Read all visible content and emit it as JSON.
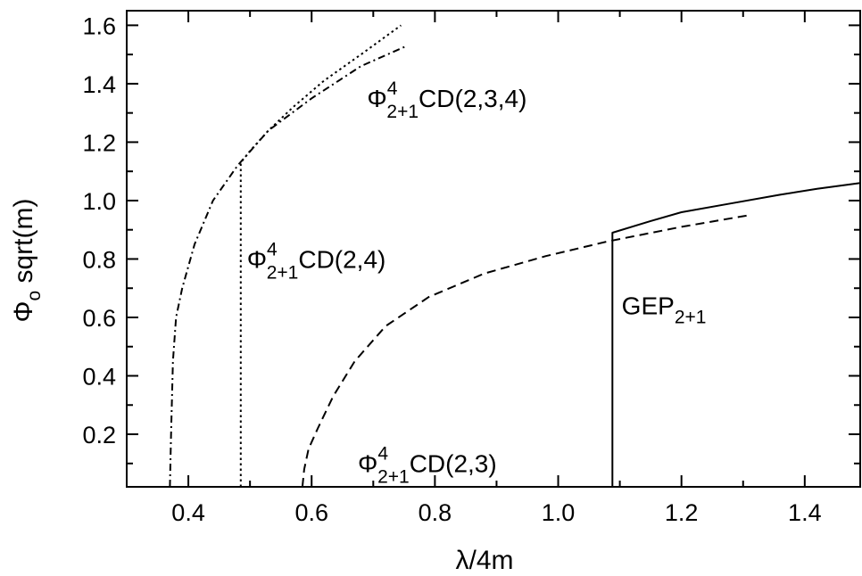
{
  "chart_data": {
    "type": "line",
    "xlabel": "λ/4m",
    "ylabel_main": "Φ",
    "ylabel_sub": "o",
    "ylabel_rest": " sqrt(m)",
    "xlim": [
      0.3,
      1.49
    ],
    "ylim": [
      0.02,
      1.65
    ],
    "xticks": [
      0.4,
      0.6,
      0.8,
      1.0,
      1.2,
      1.4
    ],
    "xtick_labels": [
      "0.4",
      "0.6",
      "0.8",
      "1.0",
      "1.2",
      "1.4"
    ],
    "xticks_minor": [
      0.3,
      0.5,
      0.7,
      0.9,
      1.1,
      1.3
    ],
    "yticks": [
      0.2,
      0.4,
      0.6,
      0.8,
      1.0,
      1.2,
      1.4,
      1.6
    ],
    "ytick_labels": [
      "0.2",
      "0.4",
      "0.6",
      "0.8",
      "1.0",
      "1.2",
      "1.4",
      "1.6"
    ],
    "yticks_minor": [
      0.1,
      0.3,
      0.5,
      0.7,
      0.9,
      1.1,
      1.3,
      1.5
    ],
    "grid": false,
    "series": [
      {
        "id": "cd234",
        "style": "dashdot",
        "x": [
          0.37,
          0.372,
          0.375,
          0.38,
          0.39,
          0.41,
          0.44,
          0.48,
          0.53,
          0.6,
          0.68,
          0.755
        ],
        "y": [
          0.02,
          0.2,
          0.45,
          0.6,
          0.7,
          0.85,
          1.0,
          1.12,
          1.24,
          1.35,
          1.46,
          1.53
        ]
      },
      {
        "id": "cd24",
        "style": "dotted",
        "x": [
          0.485,
          0.485,
          0.5,
          0.53,
          0.57,
          0.62,
          0.68,
          0.745
        ],
        "y": [
          0.02,
          1.13,
          1.17,
          1.24,
          1.32,
          1.41,
          1.5,
          1.6
        ]
      },
      {
        "id": "cd23",
        "style": "dashed",
        "x": [
          0.585,
          0.588,
          0.595,
          0.61,
          0.635,
          0.67,
          0.72,
          0.79,
          0.88,
          0.98,
          1.08,
          1.2,
          1.31
        ],
        "y": [
          0.02,
          0.08,
          0.15,
          0.22,
          0.33,
          0.45,
          0.57,
          0.67,
          0.75,
          0.81,
          0.86,
          0.91,
          0.95
        ]
      },
      {
        "id": "gep",
        "style": "solid",
        "x": [
          1.088,
          1.088,
          1.15,
          1.2,
          1.28,
          1.36,
          1.42,
          1.49
        ],
        "y": [
          0.02,
          0.89,
          0.93,
          0.96,
          0.99,
          1.02,
          1.04,
          1.06
        ]
      }
    ],
    "annotations": [
      {
        "id": "cd234",
        "main": "Φ",
        "sup": "4",
        "sub": "2+1",
        "rest": "CD(2,3,4)",
        "x": 0.69,
        "y": 1.32
      },
      {
        "id": "cd24",
        "main": "Φ",
        "sup": "4",
        "sub": "2+1",
        "rest": "CD(2,4)",
        "x": 0.495,
        "y": 0.77
      },
      {
        "id": "cd23",
        "main": "Φ",
        "sup": "4",
        "sub": "2+1",
        "rest": "CD(2,3)",
        "x": 0.675,
        "y": 0.07
      },
      {
        "id": "gep",
        "main": "GEP",
        "sup": "",
        "sub": "2+1",
        "rest": "",
        "x": 1.103,
        "y": 0.61
      }
    ]
  }
}
